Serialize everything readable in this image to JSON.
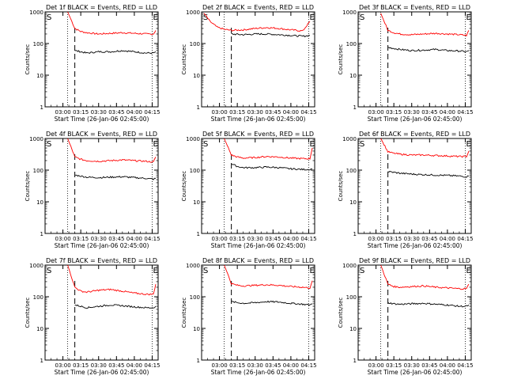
{
  "chart_data": [
    {
      "type": "line",
      "title": "Det 1f BLACK = Events, RED = LLD",
      "xlabel": "Start Time (26-Jan-06 02:45:00)",
      "ylabel": "Counts/sec",
      "x_ticks": [
        "03:00",
        "03:15",
        "03:30",
        "03:45",
        "04:00",
        "04:15"
      ],
      "y_ticks": [
        "1",
        "10",
        "100",
        "1000"
      ],
      "ylim": [
        1,
        1000
      ],
      "yscale": "log",
      "markers": [
        "S",
        "E"
      ],
      "x": [
        "03:04",
        "03:10",
        "03:15",
        "03:20",
        "03:30",
        "03:40",
        "03:50",
        "04:00",
        "04:10",
        "04:16",
        "04:18"
      ],
      "series": [
        {
          "name": "RED = LLD",
          "color": "#ff0000",
          "values": [
            1000,
            300,
            240,
            220,
            200,
            210,
            220,
            210,
            200,
            200,
            260
          ]
        },
        {
          "name": "BLACK = Events",
          "color": "#000000",
          "values": [
            null,
            60,
            55,
            50,
            55,
            55,
            60,
            55,
            50,
            50,
            55
          ]
        }
      ]
    },
    {
      "type": "line",
      "title": "Det 2f BLACK = Events, RED = LLD",
      "xlabel": "Start Time (26-Jan-06 02:45:00)",
      "ylabel": "Counts/sec",
      "x_ticks": [
        "03:00",
        "03:15",
        "03:30",
        "03:45",
        "04:00",
        "04:15"
      ],
      "y_ticks": [
        "1",
        "10",
        "100",
        "1000"
      ],
      "ylim": [
        1,
        1000
      ],
      "yscale": "log",
      "markers": [
        "S",
        "E"
      ],
      "x": [
        "02:47",
        "02:52",
        "02:58",
        "03:04",
        "03:10",
        "03:20",
        "03:30",
        "03:40",
        "03:50",
        "04:00",
        "04:10",
        "04:16"
      ],
      "series": [
        {
          "name": "RED = LLD",
          "color": "#ff0000",
          "values": [
            900,
            500,
            330,
            280,
            260,
            270,
            300,
            320,
            300,
            270,
            250,
            500
          ]
        },
        {
          "name": "BLACK = Events",
          "color": "#000000",
          "values": [
            null,
            null,
            null,
            null,
            200,
            190,
            200,
            200,
            190,
            180,
            170,
            180
          ]
        }
      ]
    },
    {
      "type": "line",
      "title": "Det 3f BLACK = Events, RED = LLD",
      "xlabel": "Start Time (26-Jan-06 02:45:00)",
      "ylabel": "Counts/sec",
      "x_ticks": [
        "03:00",
        "03:15",
        "03:30",
        "03:45",
        "04:00",
        "04:15"
      ],
      "y_ticks": [
        "1",
        "10",
        "100",
        "1000"
      ],
      "ylim": [
        1,
        1000
      ],
      "yscale": "log",
      "markers": [
        "S",
        "E"
      ],
      "x": [
        "03:04",
        "03:10",
        "03:15",
        "03:20",
        "03:30",
        "03:40",
        "03:50",
        "04:00",
        "04:10",
        "04:16",
        "04:18"
      ],
      "series": [
        {
          "name": "RED = LLD",
          "color": "#ff0000",
          "values": [
            900,
            260,
            220,
            200,
            190,
            200,
            210,
            200,
            190,
            180,
            260
          ]
        },
        {
          "name": "BLACK = Events",
          "color": "#000000",
          "values": [
            null,
            75,
            70,
            65,
            60,
            62,
            65,
            60,
            58,
            55,
            60
          ]
        }
      ]
    },
    {
      "type": "line",
      "title": "Det 4f BLACK = Events, RED = LLD",
      "xlabel": "Start Time (26-Jan-06 02:45:00)",
      "ylabel": "Counts/sec",
      "x_ticks": [
        "03:00",
        "03:15",
        "03:30",
        "03:45",
        "04:00",
        "04:15"
      ],
      "y_ticks": [
        "1",
        "10",
        "100",
        "1000"
      ],
      "ylim": [
        1,
        1000
      ],
      "yscale": "log",
      "markers": [
        "S",
        "E"
      ],
      "x": [
        "03:04",
        "03:10",
        "03:15",
        "03:20",
        "03:30",
        "03:40",
        "03:50",
        "04:00",
        "04:10",
        "04:16",
        "04:18"
      ],
      "series": [
        {
          "name": "RED = LLD",
          "color": "#ff0000",
          "values": [
            1000,
            260,
            220,
            200,
            190,
            200,
            210,
            200,
            190,
            180,
            260
          ]
        },
        {
          "name": "BLACK = Events",
          "color": "#000000",
          "values": [
            null,
            70,
            65,
            60,
            58,
            60,
            62,
            58,
            55,
            52,
            55
          ]
        }
      ]
    },
    {
      "type": "line",
      "title": "Det 5f BLACK = Events, RED = LLD",
      "xlabel": "Start Time (26-Jan-06 02:45:00)",
      "ylabel": "Counts/sec",
      "x_ticks": [
        "03:00",
        "03:15",
        "03:30",
        "03:45",
        "04:00",
        "04:15"
      ],
      "y_ticks": [
        "1",
        "10",
        "100",
        "1000"
      ],
      "ylim": [
        1,
        1000
      ],
      "yscale": "log",
      "markers": [
        "S",
        "E"
      ],
      "x": [
        "03:04",
        "03:10",
        "03:15",
        "03:20",
        "03:30",
        "03:40",
        "03:50",
        "04:00",
        "04:10",
        "04:16",
        "04:18"
      ],
      "series": [
        {
          "name": "RED = LLD",
          "color": "#ff0000",
          "values": [
            1000,
            300,
            260,
            240,
            250,
            270,
            260,
            240,
            230,
            230,
            500
          ]
        },
        {
          "name": "BLACK = Events",
          "color": "#000000",
          "values": [
            null,
            160,
            130,
            120,
            120,
            125,
            120,
            110,
            105,
            105,
            110
          ]
        }
      ]
    },
    {
      "type": "line",
      "title": "Det 6f BLACK = Events, RED = LLD",
      "xlabel": "Start Time (26-Jan-06 02:45:00)",
      "ylabel": "Counts/sec",
      "x_ticks": [
        "03:00",
        "03:15",
        "03:30",
        "03:45",
        "04:00",
        "04:15"
      ],
      "y_ticks": [
        "1",
        "10",
        "100",
        "1000"
      ],
      "ylim": [
        1,
        1000
      ],
      "yscale": "log",
      "markers": [
        "S",
        "E"
      ],
      "x": [
        "03:04",
        "03:10",
        "03:15",
        "03:20",
        "03:30",
        "03:40",
        "03:50",
        "04:00",
        "04:10",
        "04:16",
        "04:18"
      ],
      "series": [
        {
          "name": "RED = LLD",
          "color": "#ff0000",
          "values": [
            1000,
            380,
            340,
            320,
            300,
            300,
            290,
            280,
            270,
            270,
            400
          ]
        },
        {
          "name": "BLACK = Events",
          "color": "#000000",
          "values": [
            null,
            90,
            85,
            80,
            75,
            72,
            70,
            68,
            65,
            62,
            65
          ]
        }
      ]
    },
    {
      "type": "line",
      "title": "Det 7f BLACK = Events, RED = LLD",
      "xlabel": "Start Time (26-Jan-06 02:45:00)",
      "ylabel": "Counts/sec",
      "x_ticks": [
        "03:00",
        "03:15",
        "03:30",
        "03:45",
        "04:00",
        "04:15"
      ],
      "y_ticks": [
        "1",
        "10",
        "100",
        "1000"
      ],
      "ylim": [
        1,
        1000
      ],
      "yscale": "log",
      "markers": [
        "S",
        "E"
      ],
      "x": [
        "03:04",
        "03:10",
        "03:15",
        "03:20",
        "03:30",
        "03:40",
        "03:50",
        "04:00",
        "04:10",
        "04:16",
        "04:18"
      ],
      "series": [
        {
          "name": "RED = LLD",
          "color": "#ff0000",
          "values": [
            1000,
            200,
            150,
            140,
            160,
            170,
            150,
            130,
            120,
            120,
            250
          ]
        },
        {
          "name": "BLACK = Events",
          "color": "#000000",
          "values": [
            null,
            55,
            50,
            45,
            50,
            55,
            52,
            48,
            45,
            45,
            50
          ]
        }
      ]
    },
    {
      "type": "line",
      "title": "Det 8f BLACK = Events, RED = LLD",
      "xlabel": "Start Time (26-Jan-06 02:45:00)",
      "ylabel": "Counts/sec",
      "x_ticks": [
        "03:00",
        "03:15",
        "03:30",
        "03:45",
        "04:00",
        "04:15"
      ],
      "y_ticks": [
        "1",
        "10",
        "100",
        "1000"
      ],
      "ylim": [
        1,
        1000
      ],
      "yscale": "log",
      "markers": [
        "S",
        "E"
      ],
      "x": [
        "03:04",
        "03:10",
        "03:15",
        "03:20",
        "03:30",
        "03:40",
        "03:50",
        "04:00",
        "04:10",
        "04:16",
        "04:18"
      ],
      "series": [
        {
          "name": "RED = LLD",
          "color": "#ff0000",
          "values": [
            1000,
            260,
            230,
            220,
            230,
            240,
            230,
            210,
            200,
            190,
            320
          ]
        },
        {
          "name": "BLACK = Events",
          "color": "#000000",
          "values": [
            null,
            70,
            65,
            62,
            65,
            70,
            68,
            62,
            58,
            55,
            60
          ]
        }
      ]
    },
    {
      "type": "line",
      "title": "Det 9f BLACK = Events, RED = LLD",
      "xlabel": "Start Time (26-Jan-06 02:45:00)",
      "ylabel": "Counts/sec",
      "x_ticks": [
        "03:00",
        "03:15",
        "03:30",
        "03:45",
        "04:00",
        "04:15"
      ],
      "y_ticks": [
        "1",
        "10",
        "100",
        "1000"
      ],
      "ylim": [
        1,
        1000
      ],
      "yscale": "log",
      "markers": [
        "S",
        "E"
      ],
      "x": [
        "03:04",
        "03:10",
        "03:15",
        "03:20",
        "03:30",
        "03:40",
        "03:50",
        "04:00",
        "04:10",
        "04:16",
        "04:18"
      ],
      "series": [
        {
          "name": "RED = LLD",
          "color": "#ff0000",
          "values": [
            1000,
            250,
            210,
            200,
            210,
            220,
            200,
            190,
            180,
            180,
            250
          ]
        },
        {
          "name": "BLACK = Events",
          "color": "#000000",
          "values": [
            null,
            65,
            60,
            58,
            60,
            62,
            58,
            55,
            50,
            50,
            55
          ]
        }
      ]
    }
  ]
}
